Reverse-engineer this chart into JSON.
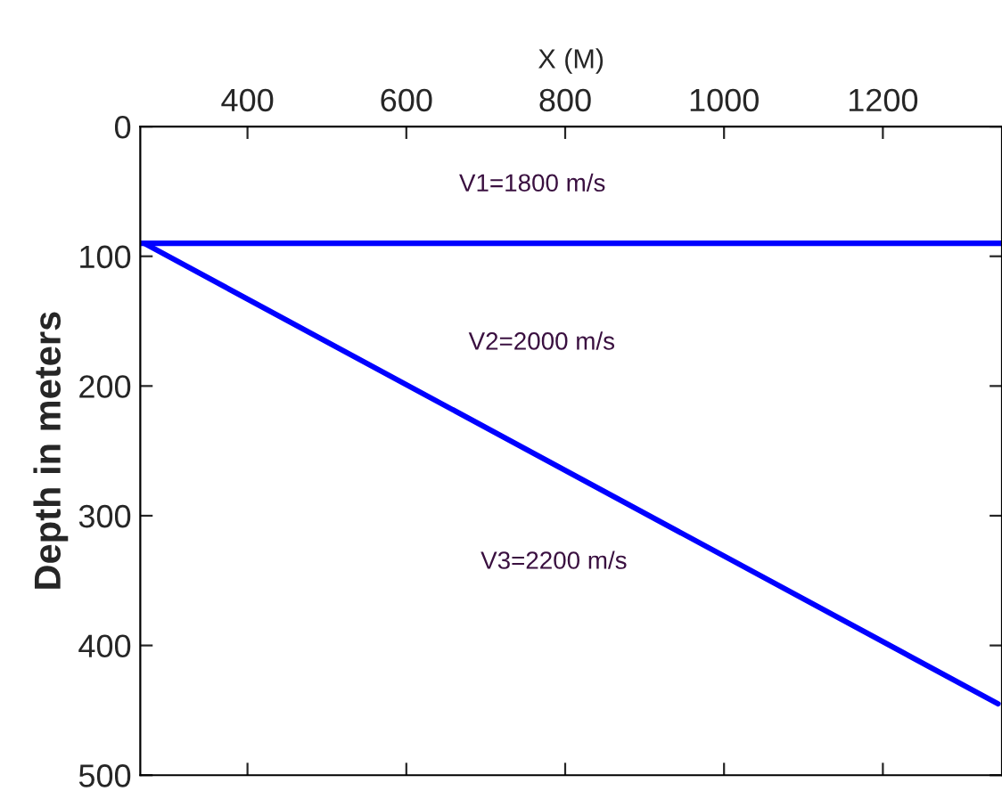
{
  "chart_data": {
    "type": "line",
    "xlabel": "X (M)",
    "ylabel": "Depth in meters",
    "series": [
      {
        "color": "#0000ff",
        "x": [
          270,
          1345
        ],
        "values": [
          90,
          445
        ]
      }
    ],
    "ref_lines": [
      {
        "axis": "y",
        "value": 90,
        "color": "#0000ff",
        "line_style": "solid"
      }
    ],
    "xlim": [
      265,
      1350
    ],
    "xticks": [
      400,
      600,
      800,
      1000,
      1200
    ],
    "ylim": [
      500,
      0
    ],
    "yticks": [
      0,
      100,
      200,
      300,
      400,
      500
    ],
    "annotations": [
      "V1=1800 m/s",
      "V2=2000 m/s",
      "V3=2200 m/s"
    ],
    "grid": false,
    "legend": false,
    "marker": "none",
    "line_style": "solid"
  }
}
